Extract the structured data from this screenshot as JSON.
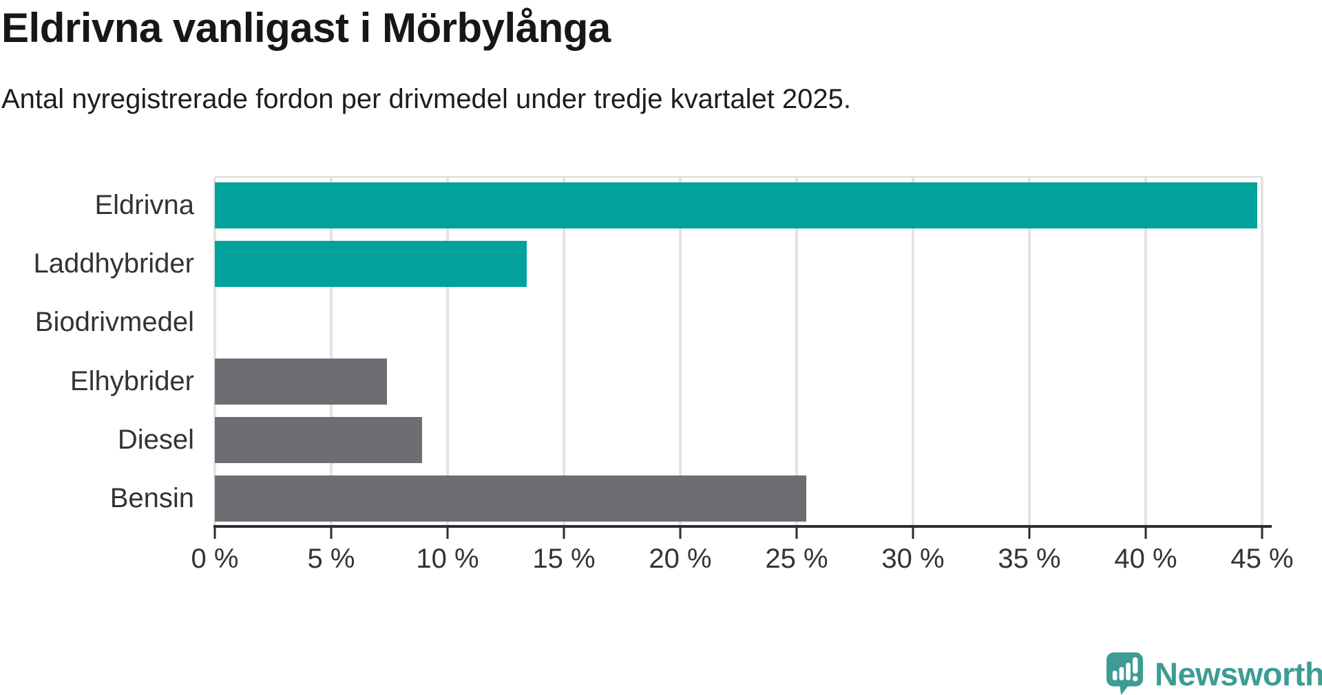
{
  "title": "Eldrivna vanligast i Mörbylånga",
  "subtitle": "Antal nyregistrerade fordon per drivmedel under tredje kvartalet 2025.",
  "colors": {
    "highlight_bar": "#00a29b",
    "default_bar": "#6d6d73",
    "axis": "#2d2d2d",
    "gridline": "#e3e3e3",
    "label_text": "#333333",
    "title_text": "#171717",
    "logo": "#3d9c94"
  },
  "chart_data": {
    "type": "bar",
    "orientation": "horizontal",
    "title": "Eldrivna vanligast i Mörbylånga",
    "subtitle": "Antal nyregistrerade fordon per drivmedel under tredje kvartalet 2025.",
    "categories": [
      "Eldrivna",
      "Laddhybrider",
      "Biodrivmedel",
      "Elhybrider",
      "Diesel",
      "Bensin"
    ],
    "values": [
      44.8,
      13.4,
      0,
      7.4,
      8.9,
      25.4
    ],
    "unit": "%",
    "bar_colors": [
      "#00a29b",
      "#00a29b",
      "#6d6d73",
      "#6d6d73",
      "#6d6d73",
      "#6d6d73"
    ],
    "xlim": [
      0,
      45
    ],
    "x_ticks": [
      0,
      5,
      10,
      15,
      20,
      25,
      30,
      35,
      40,
      45
    ],
    "x_tick_labels": [
      "0 %",
      "5 %",
      "10 %",
      "15 %",
      "20 %",
      "25 %",
      "30 %",
      "35 %",
      "40 %",
      "45 %"
    ],
    "grid": "vertical-only",
    "legend": "none"
  },
  "branding": {
    "logo_text": "Newsworthy"
  }
}
